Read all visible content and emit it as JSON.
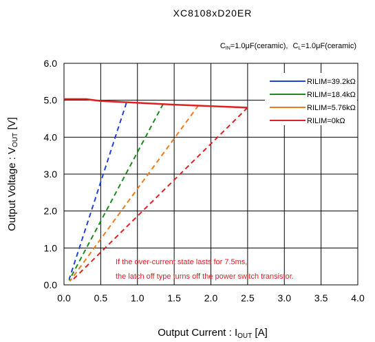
{
  "chart_data": {
    "type": "line",
    "title": "XC8108xD20ER",
    "subtitle": "C_IN=1.0μF(ceramic), C_L=1.0μF(ceramic)",
    "subtitle_parts": {
      "cin_letter": "C",
      "cin_sub": "IN",
      "cin_value": "=1.0μF(ceramic),",
      "cl_letter": "C",
      "cl_sub": "L",
      "cl_value": "=1.0μF(ceramic)"
    },
    "xlabel": "Output Current : I_OUT [A]",
    "xlabel_parts": {
      "main": "Output Current : I",
      "sub": "OUT",
      "unit": " [A]"
    },
    "ylabel": "Output Voltage : V_OUT [V]",
    "ylabel_parts": {
      "main": "Output Voltage : V",
      "sub": "OUT",
      "unit": " [V]"
    },
    "xlim": [
      0,
      4.0
    ],
    "ylim": [
      0,
      6.0
    ],
    "xticks": [
      "0.0",
      "0.5",
      "1.0",
      "1.5",
      "2.0",
      "2.5",
      "3.0",
      "3.5",
      "4.0"
    ],
    "yticks": [
      "0.0",
      "1.0",
      "2.0",
      "3.0",
      "4.0",
      "5.0",
      "6.0"
    ],
    "grid": true,
    "legend_position": "top-right",
    "main_curve": {
      "x": [
        0,
        0.3,
        0.5,
        1.0,
        1.5,
        2.0,
        2.5
      ],
      "y": [
        5.03,
        5.03,
        4.98,
        4.93,
        4.88,
        4.84,
        4.8
      ]
    },
    "series": [
      {
        "name": "RILIM=39.2kΩ",
        "color": "#1f3fe0",
        "limit_current": 0.85,
        "limit_voltage": 4.93,
        "foldback_end": [
          0.07,
          0.15
        ]
      },
      {
        "name": "RILIM=18.4kΩ",
        "color": "#1a8a1a",
        "limit_current": 1.35,
        "limit_voltage": 4.9,
        "foldback_end": [
          0.07,
          0.12
        ]
      },
      {
        "name": "RILIM=5.76kΩ",
        "color": "#f07a1a",
        "limit_current": 1.83,
        "limit_voltage": 4.86,
        "foldback_end": [
          0.08,
          0.1
        ]
      },
      {
        "name": "RILIM=0kΩ",
        "color": "#e02020",
        "limit_current": 2.5,
        "limit_voltage": 4.8,
        "foldback_end": [
          0.1,
          0.1
        ]
      }
    ],
    "annotation_lines": [
      "If the over-current state lasts for 7.5ms,",
      "the latch off type turns off the power switch transistor."
    ],
    "annotation_color": "#e02020"
  }
}
